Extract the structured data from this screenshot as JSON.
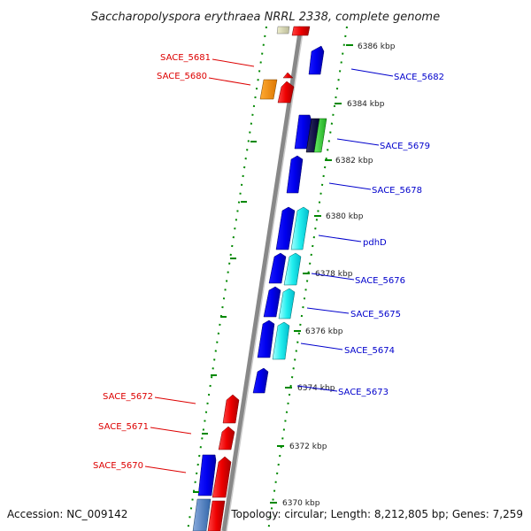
{
  "title": "Saccharopolyspora erythraea NRRL 2338, complete genome",
  "accession": "Accession: NC_009142",
  "topology": "Topology: circular; Length: 8,212,805 bp; Genes: 7,259",
  "colors": {
    "forward_label": "#0000cc",
    "reverse_label": "#dd0000",
    "tick": "#008800",
    "backbone": "#999999"
  },
  "ruler": [
    {
      "label": "6386 kbp"
    },
    {
      "label": "6384 kbp"
    },
    {
      "label": "6382 kbp"
    },
    {
      "label": "6380 kbp"
    },
    {
      "label": "6378 kbp"
    },
    {
      "label": "6376 kbp"
    },
    {
      "label": "6374 kbp"
    },
    {
      "label": "6372 kbp"
    },
    {
      "label": "6370 kbp"
    }
  ],
  "gene_labels_forward": [
    {
      "label": "SACE_5682"
    },
    {
      "label": "SACE_5679"
    },
    {
      "label": "SACE_5678"
    },
    {
      "label": "pdhD"
    },
    {
      "label": "SACE_5676"
    },
    {
      "label": "SACE_5675"
    },
    {
      "label": "SACE_5674"
    },
    {
      "label": "SACE_5673"
    }
  ],
  "gene_labels_reverse": [
    {
      "label": "SACE_5681"
    },
    {
      "label": "SACE_5680"
    },
    {
      "label": "SACE_5672"
    },
    {
      "label": "SACE_5671"
    },
    {
      "label": "SACE_5670"
    }
  ]
}
